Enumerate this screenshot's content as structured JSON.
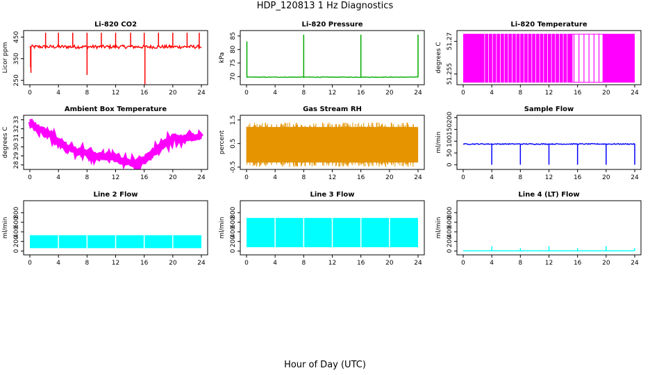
{
  "figure": {
    "title": "HDP_120813  1 Hz Diagnostics",
    "xlabel": "Hour of Day (UTC)"
  },
  "chart_data": [
    {
      "type": "line",
      "title": "Li-820 CO2",
      "ylabel": "Licor ppm",
      "color": "#ff0000",
      "xlim": [
        0,
        24
      ],
      "xticks": [
        0,
        4,
        8,
        12,
        16,
        20,
        24
      ],
      "ylim": [
        230,
        480
      ],
      "yticks": [
        250,
        350,
        450
      ],
      "baseline": 405,
      "noise": 8,
      "spikes": [
        {
          "x": 0.1,
          "y": 310
        },
        {
          "x": 0.15,
          "y": 285
        },
        {
          "x": 2.2,
          "y": 470
        },
        {
          "x": 4.0,
          "y": 470
        },
        {
          "x": 6.0,
          "y": 470
        },
        {
          "x": 8.0,
          "y": 470
        },
        {
          "x": 8.0,
          "y": 275
        },
        {
          "x": 10.0,
          "y": 470
        },
        {
          "x": 12.0,
          "y": 470
        },
        {
          "x": 14.1,
          "y": 470
        },
        {
          "x": 16.0,
          "y": 470
        },
        {
          "x": 16.1,
          "y": 232
        },
        {
          "x": 18.0,
          "y": 470
        },
        {
          "x": 20.0,
          "y": 470
        },
        {
          "x": 22.0,
          "y": 470
        },
        {
          "x": 23.7,
          "y": 470
        }
      ]
    },
    {
      "type": "line",
      "title": "Li-820 Pressure",
      "ylabel": "kPa",
      "color": "#00aa00",
      "xlim": [
        0,
        24
      ],
      "xticks": [
        0,
        4,
        8,
        12,
        16,
        20,
        24
      ],
      "ylim": [
        67,
        87
      ],
      "yticks": [
        70,
        75,
        80,
        85
      ],
      "baseline": 69.8,
      "noise": 0.1,
      "spikes": [
        {
          "x": 0.05,
          "y": 83
        },
        {
          "x": 8.0,
          "y": 85.5
        },
        {
          "x": 16.0,
          "y": 85.5
        },
        {
          "x": 24.0,
          "y": 85.5
        }
      ]
    },
    {
      "type": "band",
      "title": "Li-820 Temperature",
      "ylabel": "degrees C",
      "color": "#ff00ff",
      "xlim": [
        0,
        24
      ],
      "xticks": [
        0,
        4,
        8,
        12,
        16,
        20,
        24
      ],
      "ylim": [
        51.25,
        51.275
      ],
      "yticks": [
        51.255,
        51.27
      ],
      "levels": [
        51.251,
        51.2735
      ]
    },
    {
      "type": "line",
      "title": "Ambient Box Temperature",
      "ylabel": "degrees C",
      "color": "#ff00ff",
      "xlim": [
        0,
        24
      ],
      "xticks": [
        0,
        4,
        8,
        12,
        16,
        20,
        24
      ],
      "ylim": [
        27.5,
        33.5
      ],
      "yticks": [
        28,
        29,
        30,
        31,
        32,
        33
      ],
      "x": [
        0,
        2,
        4,
        6,
        8,
        10,
        12,
        14,
        15,
        16,
        18,
        20,
        22,
        24
      ],
      "y": [
        32.7,
        31.7,
        30.5,
        29.8,
        29.3,
        28.9,
        28.7,
        28.3,
        28.1,
        28.4,
        29.8,
        30.9,
        31.0,
        31.1
      ],
      "noise": 0.35
    },
    {
      "type": "band",
      "title": "Gas Stream RH",
      "ylabel": "percent",
      "color": "#e69500",
      "xlim": [
        0,
        24
      ],
      "xticks": [
        0,
        4,
        8,
        12,
        16,
        20,
        24
      ],
      "ylim": [
        -0.6,
        1.7
      ],
      "yticks": [
        -0.5,
        0.5,
        1.5
      ],
      "range": [
        -0.3,
        1.2
      ],
      "extremes": [
        -0.5,
        1.4
      ]
    },
    {
      "type": "line",
      "title": "Sample Flow",
      "ylabel": "ml/min",
      "color": "#0000ff",
      "xlim": [
        0,
        24
      ],
      "xticks": [
        0,
        4,
        8,
        12,
        16,
        20,
        24
      ],
      "ylim": [
        -20,
        210
      ],
      "yticks": [
        0,
        50,
        100,
        150,
        200
      ],
      "baseline": 88,
      "noise": 2,
      "spikes": [
        {
          "x": 4.0,
          "y": 0
        },
        {
          "x": 8.0,
          "y": 0
        },
        {
          "x": 12.0,
          "y": 0
        },
        {
          "x": 16.0,
          "y": 0
        },
        {
          "x": 20.0,
          "y": 0
        },
        {
          "x": 24.0,
          "y": 0
        }
      ]
    },
    {
      "type": "band",
      "title": "Line 2 Flow",
      "ylabel": "ml/min",
      "color": "#00ffff",
      "xlim": [
        0,
        24
      ],
      "xticks": [
        0,
        4,
        8,
        12,
        16,
        20,
        24
      ],
      "ylim": [
        -80,
        1050
      ],
      "yticks": [
        0,
        200,
        400,
        600,
        800
      ],
      "range": [
        60,
        330
      ],
      "gaps": [
        4,
        8,
        12,
        16,
        20
      ]
    },
    {
      "type": "band",
      "title": "Line 3 Flow",
      "ylabel": "ml/min",
      "color": "#00ffff",
      "xlim": [
        0,
        24
      ],
      "xticks": [
        0,
        4,
        8,
        12,
        16,
        20,
        24
      ],
      "ylim": [
        -80,
        1050
      ],
      "yticks": [
        0,
        200,
        400,
        600,
        800
      ],
      "range": [
        80,
        690
      ],
      "gaps": [
        4,
        8,
        12,
        16,
        20
      ]
    },
    {
      "type": "line",
      "title": "Line 4 (LT) Flow",
      "ylabel": "ml/min",
      "color": "#00ffff",
      "xlim": [
        0,
        24
      ],
      "xticks": [
        0,
        4,
        8,
        12,
        16,
        20,
        24
      ],
      "ylim": [
        -80,
        1050
      ],
      "yticks": [
        0,
        200,
        400,
        600,
        800
      ],
      "baseline": 5,
      "noise": 2,
      "spikes": [
        {
          "x": 4.0,
          "y": 100
        },
        {
          "x": 8.0,
          "y": 60
        },
        {
          "x": 12.0,
          "y": 100
        },
        {
          "x": 16.0,
          "y": 60
        },
        {
          "x": 20.0,
          "y": 100
        },
        {
          "x": 24.0,
          "y": 60
        }
      ]
    }
  ]
}
